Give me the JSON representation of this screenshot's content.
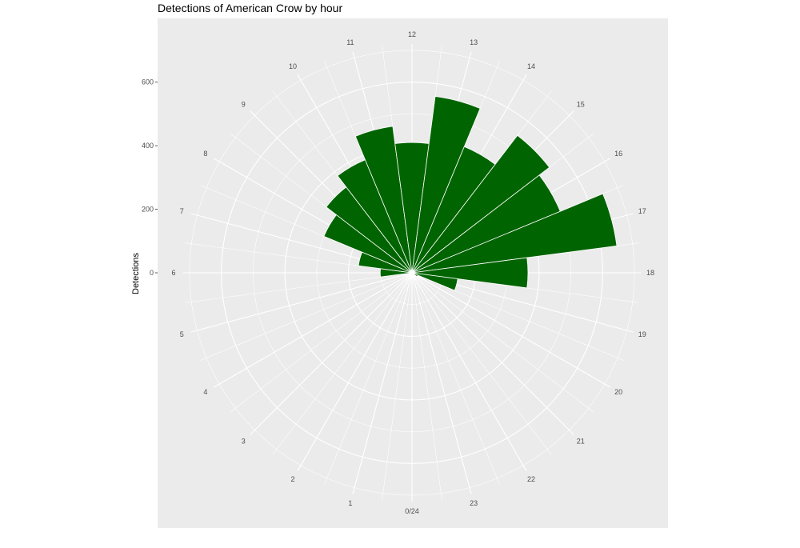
{
  "chart_data": {
    "type": "bar",
    "coord": "polar",
    "title": "Detections of American Crow by hour",
    "xlabel": "",
    "ylabel": "Detections",
    "colors": {
      "bar": "#006400",
      "panel_background": "#ebebeb",
      "grid": "#ffffff"
    },
    "hour_labels": [
      "0/24",
      "1",
      "2",
      "3",
      "4",
      "5",
      "6",
      "7",
      "8",
      "9",
      "10",
      "11",
      "12",
      "13",
      "14",
      "15",
      "16",
      "17",
      "18",
      "19",
      "20",
      "21",
      "22",
      "23"
    ],
    "y_ticks": [
      "0",
      "200",
      "400",
      "600"
    ],
    "y_tick_values": [
      0,
      200,
      400,
      600
    ],
    "ylim": [
      0,
      720
    ],
    "grid": true,
    "legend": "none",
    "bars": [
      {
        "hour": 5,
        "value": 5
      },
      {
        "hour": 6,
        "value": 100
      },
      {
        "hour": 7,
        "value": 170
      },
      {
        "hour": 8,
        "value": 300
      },
      {
        "hour": 9,
        "value": 340
      },
      {
        "hour": 10,
        "value": 385
      },
      {
        "hour": 11,
        "value": 465
      },
      {
        "hour": 12,
        "value": 410
      },
      {
        "hour": 13,
        "value": 560
      },
      {
        "hour": 14,
        "value": 430
      },
      {
        "hour": 15,
        "value": 545
      },
      {
        "hour": 16,
        "value": 505
      },
      {
        "hour": 17,
        "value": 650
      },
      {
        "hour": 18,
        "value": 365
      },
      {
        "hour": 19,
        "value": 145
      },
      {
        "hour": 20,
        "value": 20
      }
    ]
  }
}
